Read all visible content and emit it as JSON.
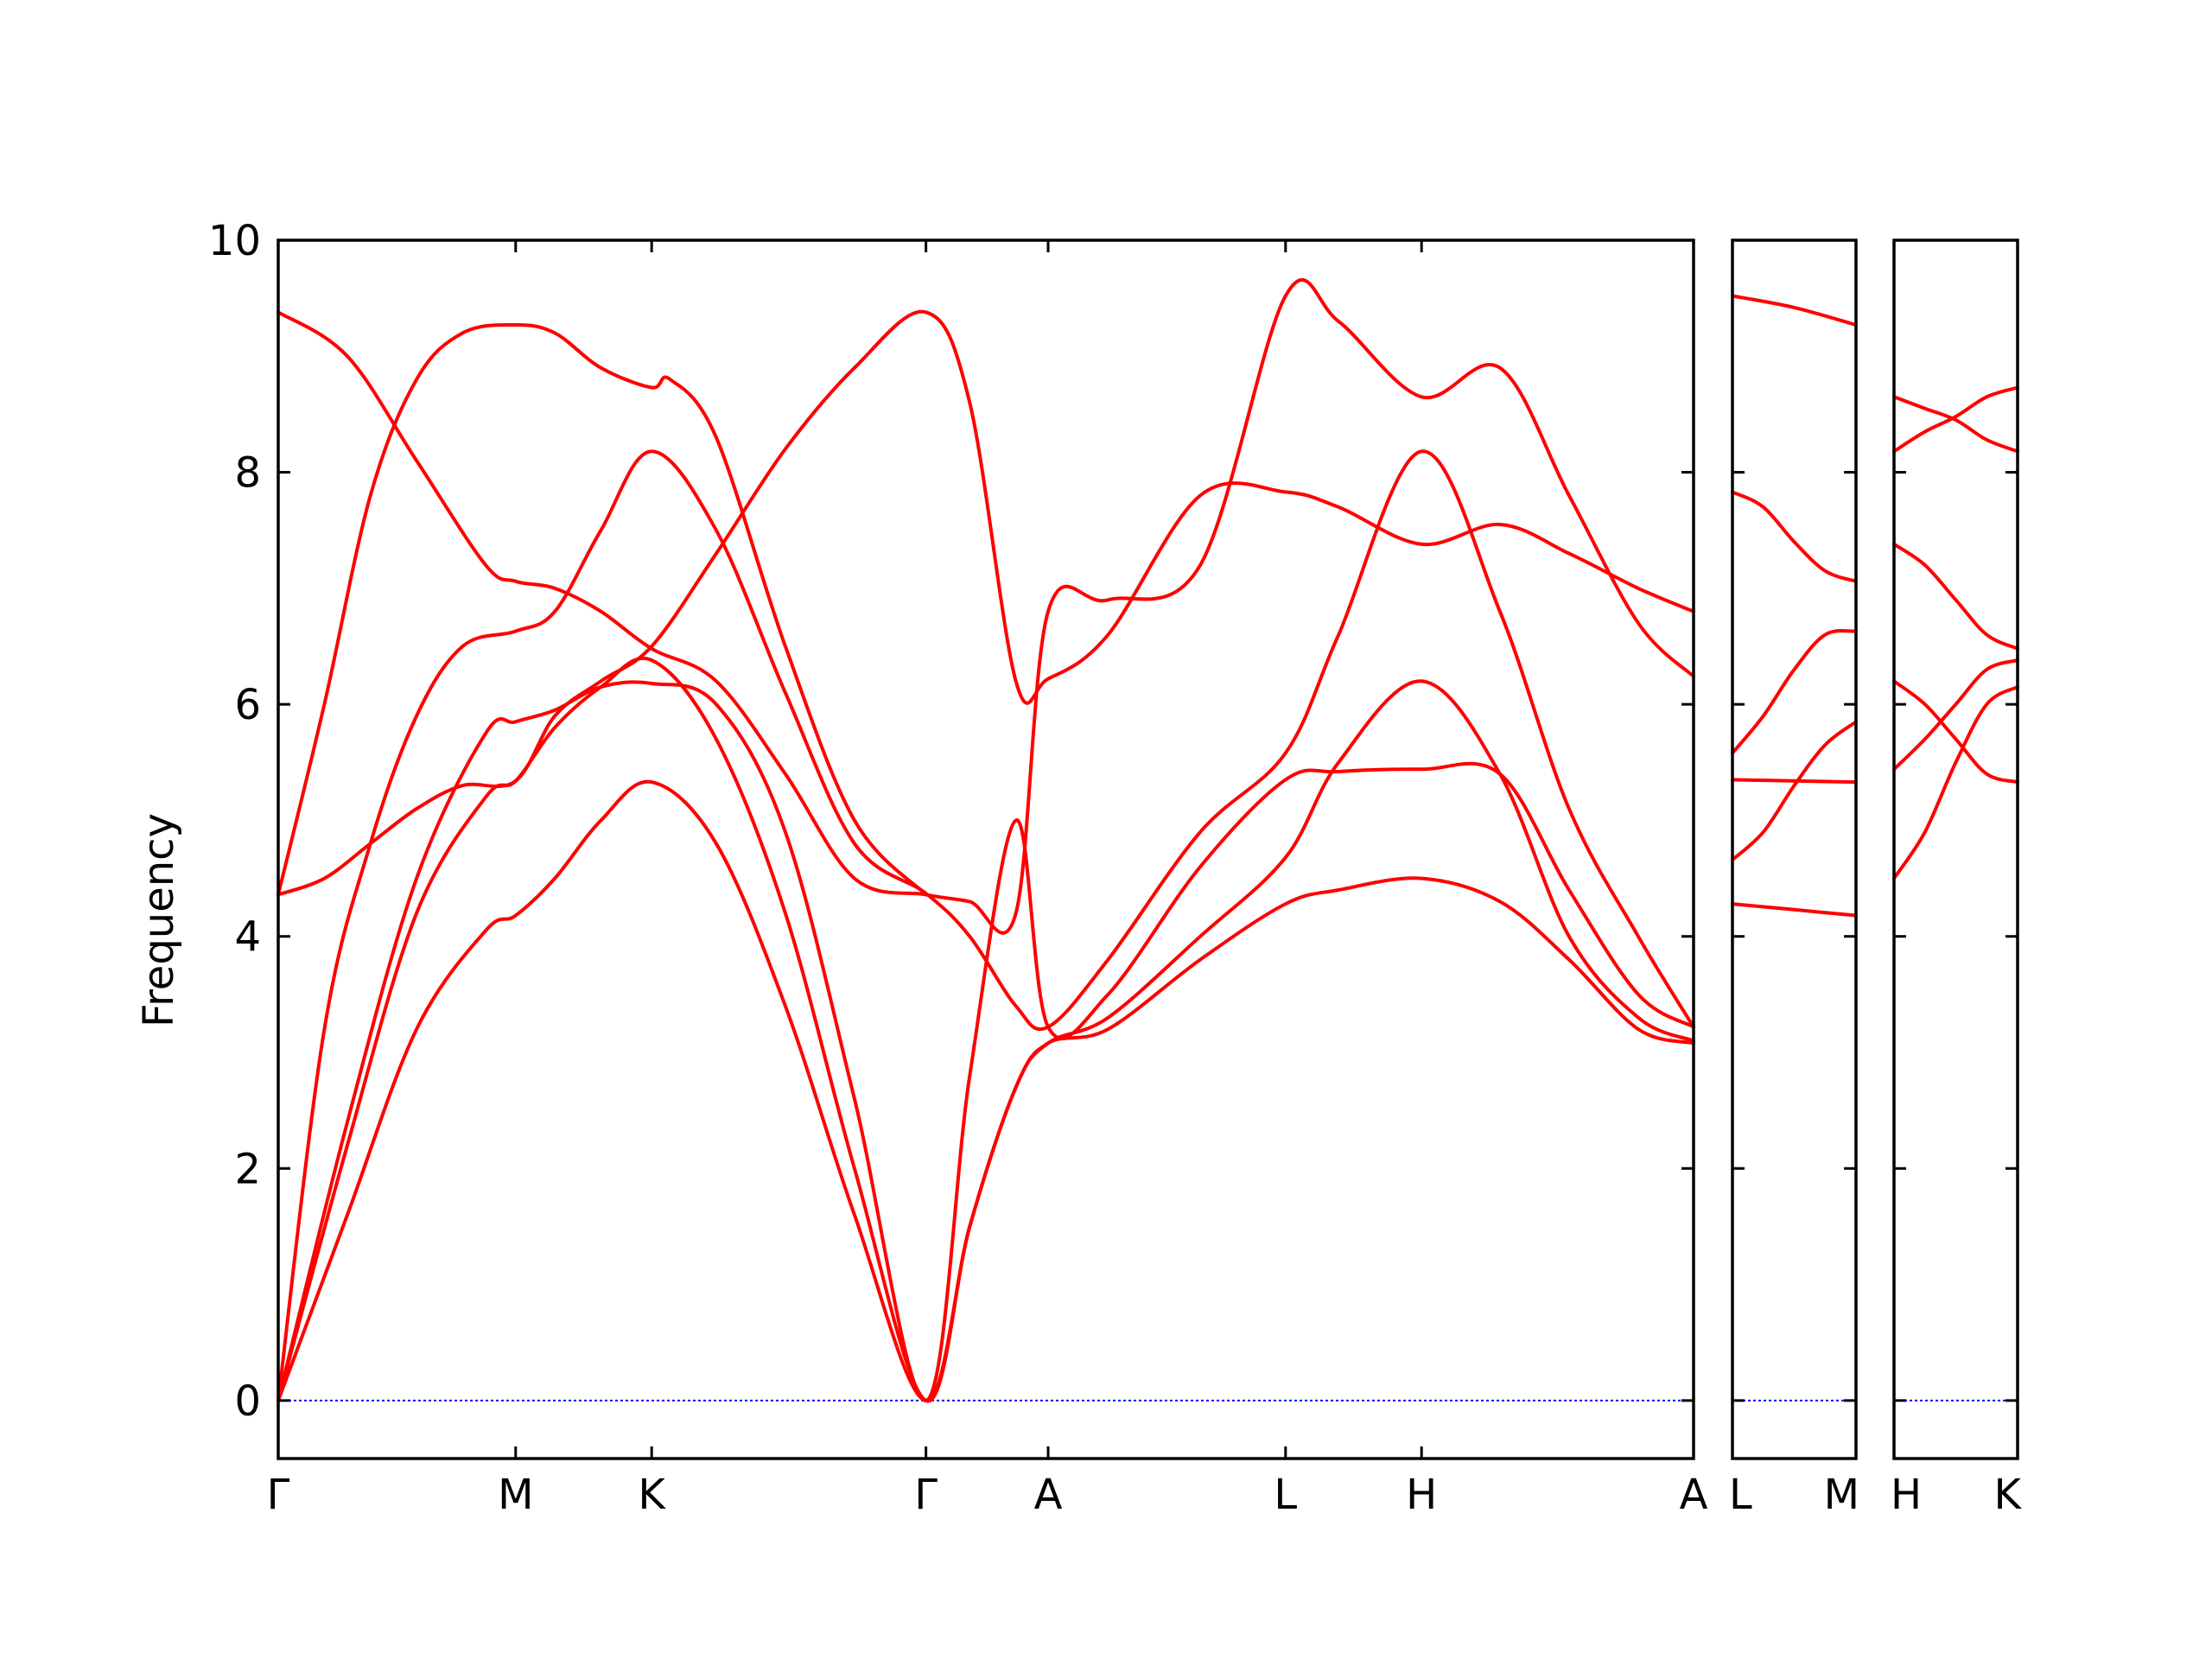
{
  "chart_data": {
    "type": "line",
    "title": "",
    "ylabel": "Frequency",
    "xlabel": "",
    "ylim": [
      -0.5,
      10
    ],
    "yticks": [
      0,
      2,
      4,
      6,
      8,
      10
    ],
    "line_color": "#ff0000",
    "zero_line_color": "#0000ff",
    "grid": false,
    "panels": [
      {
        "id": "p1",
        "xlim": [
          0,
          6.14
        ],
        "ticks": [
          {
            "x": 0,
            "label": "Γ"
          },
          {
            "x": 1.03,
            "label": "M"
          },
          {
            "x": 1.62,
            "label": "K"
          },
          {
            "x": 2.81,
            "label": "Γ"
          },
          {
            "x": 3.34,
            "label": "A"
          },
          {
            "x": 4.37,
            "label": "L"
          },
          {
            "x": 4.96,
            "label": "H"
          },
          {
            "x": 6.14,
            "label": "A"
          }
        ],
        "bands": [
          {
            "name": "b1",
            "x": [
              0,
              0.3,
              0.6,
              0.9,
              1.03,
              1.2,
              1.4,
              1.62,
              1.9,
              2.2,
              2.5,
              2.81,
              3.0,
              3.2,
              3.34,
              3.6,
              4.0,
              4.37,
              4.6,
              4.96,
              5.3,
              5.6,
              5.9,
              6.14
            ],
            "y": [
              0,
              1.6,
              3.2,
              4.05,
              4.18,
              4.5,
              5.0,
              5.33,
              4.8,
              3.4,
              1.6,
              0,
              1.5,
              2.7,
              3.08,
              3.2,
              3.8,
              4.28,
              4.4,
              4.5,
              4.3,
              3.8,
              3.2,
              3.08
            ]
          },
          {
            "name": "b2",
            "x": [
              0,
              0.3,
              0.6,
              0.9,
              1.03,
              1.2,
              1.4,
              1.62,
              1.9,
              2.2,
              2.5,
              2.81,
              3.0,
              3.2,
              3.34,
              3.6,
              4.0,
              4.37,
              4.6,
              4.96,
              5.3,
              5.6,
              5.9,
              6.14
            ],
            "y": [
              0,
              2.2,
              4.2,
              5.2,
              5.34,
              5.8,
              6.15,
              6.38,
              5.7,
              4.2,
              2.0,
              0,
              1.5,
              2.7,
              3.08,
              3.3,
              4.0,
              4.68,
              5.5,
              6.2,
              5.4,
              4.0,
              3.3,
              3.1
            ]
          },
          {
            "name": "b3",
            "x": [
              0,
              0.3,
              0.6,
              0.9,
              1.03,
              1.2,
              1.4,
              1.62,
              1.9,
              2.2,
              2.5,
              2.81,
              3.0,
              3.2,
              3.34,
              3.6,
              4.0,
              4.37,
              4.6,
              4.96,
              5.3,
              5.6,
              5.9,
              6.14
            ],
            "y": [
              0,
              2.4,
              4.5,
              5.75,
              5.85,
              5.95,
              6.15,
              6.18,
              6.0,
              4.9,
              2.6,
              0,
              2.8,
              5.0,
              3.22,
              3.5,
              4.6,
              5.35,
              5.42,
              5.44,
              5.4,
              4.4,
              3.5,
              3.22
            ]
          },
          {
            "name": "b4",
            "x": [
              0,
              0.2,
              0.4,
              0.6,
              0.8,
              1.03,
              1.2,
              1.4,
              1.62,
              1.9,
              2.2,
              2.5,
              2.81,
              3.0,
              3.2,
              3.34,
              3.6,
              4.0,
              4.37,
              4.6,
              4.96,
              5.3,
              5.6,
              5.9,
              6.14
            ],
            "y": [
              0,
              3.2,
              4.8,
              5.9,
              6.5,
              6.63,
              6.8,
              7.5,
              8.18,
              7.5,
              6.1,
              4.8,
              4.37,
              4.0,
              3.4,
              3.22,
              3.8,
              4.9,
              5.58,
              6.6,
              8.18,
              6.8,
              5.1,
              4.0,
              3.22
            ]
          },
          {
            "name": "b5",
            "x": [
              0,
              0.2,
              0.4,
              0.6,
              0.8,
              1.03,
              1.2,
              1.4,
              1.62,
              1.9,
              2.2,
              2.5,
              2.81,
              3.0,
              3.2,
              3.34,
              3.6,
              4.0,
              4.37,
              4.6,
              4.96,
              5.3,
              5.6,
              5.9,
              6.14
            ],
            "y": [
              4.36,
              4.5,
              4.8,
              5.1,
              5.3,
              5.34,
              5.9,
              6.2,
              6.5,
              7.3,
              8.2,
              8.9,
              9.38,
              8.6,
              6.2,
              6.22,
              6.6,
              7.8,
              7.83,
              7.7,
              7.38,
              7.55,
              7.3,
              7.0,
              6.8
            ]
          },
          {
            "name": "b6",
            "x": [
              0,
              0.3,
              0.6,
              0.9,
              1.03,
              1.2,
              1.4,
              1.62,
              1.9,
              2.2,
              2.5,
              2.81,
              3.0,
              3.2,
              3.34,
              3.6,
              4.0,
              4.37,
              4.6,
              4.96,
              5.3,
              5.6,
              5.9,
              6.14
            ],
            "y": [
              9.38,
              9.0,
              8.1,
              7.2,
              7.06,
              7.0,
              6.8,
              6.48,
              6.2,
              5.4,
              4.5,
              4.36,
              4.3,
              4.2,
              6.8,
              6.9,
              7.2,
              9.52,
              9.3,
              8.65,
              8.9,
              7.8,
              6.7,
              6.24
            ]
          },
          {
            "name": "b7",
            "x": [
              0,
              0.2,
              0.4,
              0.6,
              0.8,
              1.03,
              1.2,
              1.4,
              1.62,
              1.7,
              1.9,
              2.2,
              2.5,
              2.81
            ],
            "y": [
              4.36,
              6.0,
              7.8,
              8.8,
              9.2,
              9.27,
              9.2,
              8.9,
              8.73,
              8.8,
              8.3,
              6.5,
              5.0,
              4.36
            ]
          }
        ]
      },
      {
        "id": "p2",
        "xlim": [
          0,
          1
        ],
        "ticks": [
          {
            "x": 0,
            "label": "L"
          },
          {
            "x": 1,
            "label": "M"
          }
        ],
        "bands": [
          {
            "name": "b1",
            "x": [
              0,
              0.5,
              1
            ],
            "y": [
              4.28,
              4.23,
              4.18
            ]
          },
          {
            "name": "b2",
            "x": [
              0,
              0.25,
              0.5,
              0.75,
              1
            ],
            "y": [
              4.66,
              4.9,
              5.3,
              5.65,
              5.85
            ]
          },
          {
            "name": "b3",
            "x": [
              0,
              0.5,
              1
            ],
            "y": [
              5.35,
              5.34,
              5.33
            ]
          },
          {
            "name": "b4",
            "x": [
              0,
              0.25,
              0.5,
              0.75,
              1
            ],
            "y": [
              5.58,
              5.9,
              6.3,
              6.6,
              6.63
            ]
          },
          {
            "name": "b5",
            "x": [
              0,
              0.25,
              0.5,
              0.75,
              1
            ],
            "y": [
              7.83,
              7.7,
              7.4,
              7.15,
              7.06
            ]
          },
          {
            "name": "b6",
            "x": [
              0,
              0.5,
              1
            ],
            "y": [
              9.52,
              9.42,
              9.27
            ]
          }
        ]
      },
      {
        "id": "p3",
        "xlim": [
          0,
          1
        ],
        "ticks": [
          {
            "x": 0,
            "label": "H"
          },
          {
            "x": 1,
            "label": "K"
          }
        ],
        "bands": [
          {
            "name": "b1",
            "x": [
              0,
              0.25,
              0.5,
              0.75,
              1
            ],
            "y": [
              4.5,
              4.9,
              5.5,
              6.0,
              6.15
            ]
          },
          {
            "name": "b2",
            "x": [
              0,
              0.25,
              0.5,
              0.75,
              1
            ],
            "y": [
              5.44,
              5.7,
              6.0,
              6.3,
              6.38
            ]
          },
          {
            "name": "b3",
            "x": [
              0,
              0.25,
              0.5,
              0.75,
              1
            ],
            "y": [
              6.2,
              6.0,
              5.7,
              5.4,
              5.33
            ]
          },
          {
            "name": "b4",
            "x": [
              0,
              0.25,
              0.5,
              0.75,
              1
            ],
            "y": [
              7.38,
              7.2,
              6.9,
              6.6,
              6.48
            ]
          },
          {
            "name": "b5",
            "x": [
              0,
              0.25,
              0.5,
              0.75,
              1
            ],
            "y": [
              8.18,
              8.35,
              8.48,
              8.65,
              8.73
            ]
          },
          {
            "name": "b6",
            "x": [
              0,
              0.25,
              0.5,
              0.75,
              1
            ],
            "y": [
              8.65,
              8.55,
              8.45,
              8.28,
              8.18
            ]
          }
        ]
      }
    ]
  }
}
